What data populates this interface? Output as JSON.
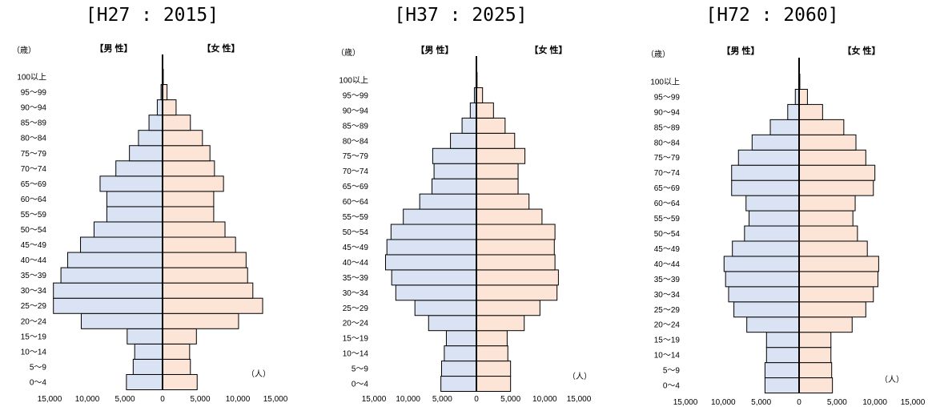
{
  "labels": {
    "age_unit": "（歳）",
    "male": "【男 性】",
    "female": "【女 性】",
    "person_unit": "（人）"
  },
  "colors": {
    "male_fill": "#dae3f3",
    "female_fill": "#fce4d6",
    "bar_stroke": "#000000"
  },
  "chart_data": [
    {
      "type": "bar",
      "title": "[H27 : 2015]",
      "orientation": "horizontal-population-pyramid",
      "categories": [
        "0～4",
        "5～9",
        "10～14",
        "15～19",
        "20～24",
        "25～29",
        "30～34",
        "35～39",
        "40～44",
        "45～49",
        "50～54",
        "55～59",
        "60～64",
        "65～69",
        "70～74",
        "75～79",
        "80～84",
        "85～89",
        "90～94",
        "95～99",
        "100以上"
      ],
      "series": [
        {
          "name": "【男 性】",
          "values": [
            4800,
            3900,
            3700,
            4700,
            10800,
            14500,
            14500,
            13500,
            12600,
            10900,
            9100,
            7400,
            7400,
            8300,
            6200,
            4400,
            3200,
            1800,
            700,
            200,
            0
          ]
        },
        {
          "name": "【女 性】",
          "values": [
            4600,
            3700,
            3600,
            4500,
            10100,
            13300,
            12000,
            11300,
            11100,
            9700,
            8300,
            6800,
            6800,
            8100,
            6900,
            6300,
            5300,
            3700,
            1800,
            600,
            100
          ]
        }
      ],
      "xticks": [
        "15,000",
        "10,000",
        "5,000",
        "0",
        "5,000",
        "10,000",
        "15,000"
      ],
      "xlim": [
        -15000,
        15000
      ]
    },
    {
      "type": "bar",
      "title": "[H37 : 2025]",
      "orientation": "horizontal-population-pyramid",
      "categories": [
        "0～4",
        "5～9",
        "10～14",
        "15～19",
        "20～24",
        "25～29",
        "30～34",
        "35～39",
        "40～44",
        "45～49",
        "50～54",
        "55～59",
        "60～64",
        "65～69",
        "70～74",
        "75～79",
        "80～84",
        "85～89",
        "90～94",
        "95～99",
        "100以上"
      ],
      "series": [
        {
          "name": "【男 性】",
          "values": [
            5200,
            5100,
            4700,
            4400,
            7000,
            9000,
            11800,
            12400,
            13300,
            13100,
            12500,
            10700,
            8300,
            6500,
            6200,
            6400,
            3800,
            2100,
            900,
            300,
            0
          ]
        },
        {
          "name": "【女 性】",
          "values": [
            5000,
            5000,
            4600,
            4500,
            7000,
            9300,
            11800,
            12000,
            11500,
            11400,
            11500,
            9600,
            7700,
            6100,
            6100,
            7100,
            5600,
            4200,
            2500,
            900,
            100
          ]
        }
      ],
      "xticks": [
        "15,000",
        "10,000",
        "5,000",
        "0",
        "5,000",
        "10,000",
        "15,000"
      ],
      "xlim": [
        -15000,
        15000
      ]
    },
    {
      "type": "bar",
      "title": "[H72 : 2060]",
      "orientation": "horizontal-population-pyramid",
      "categories": [
        "0～4",
        "5～9",
        "10～14",
        "15～19",
        "20～24",
        "25～29",
        "30～34",
        "35～39",
        "40～44",
        "45～49",
        "50～54",
        "55～59",
        "60～64",
        "65～69",
        "70～74",
        "75～79",
        "80～84",
        "85～89",
        "90～94",
        "95～99",
        "100以上"
      ],
      "series": [
        {
          "name": "【男 性】",
          "values": [
            4500,
            4500,
            4300,
            4300,
            6900,
            8600,
            9300,
            9700,
            9900,
            8800,
            7200,
            6600,
            7000,
            8900,
            8900,
            8000,
            6200,
            3800,
            1500,
            500,
            0
          ]
        },
        {
          "name": "【女 性】",
          "values": [
            4400,
            4300,
            4200,
            4200,
            7000,
            8800,
            9800,
            10400,
            10500,
            9000,
            7700,
            7100,
            7400,
            9800,
            10000,
            8800,
            7500,
            5900,
            3100,
            1100,
            100
          ]
        }
      ],
      "xticks": [
        "15,000",
        "10,000",
        "5,000",
        "0",
        "5,000",
        "10,000",
        "15,000"
      ],
      "xlim": [
        -15000,
        15000
      ]
    }
  ]
}
